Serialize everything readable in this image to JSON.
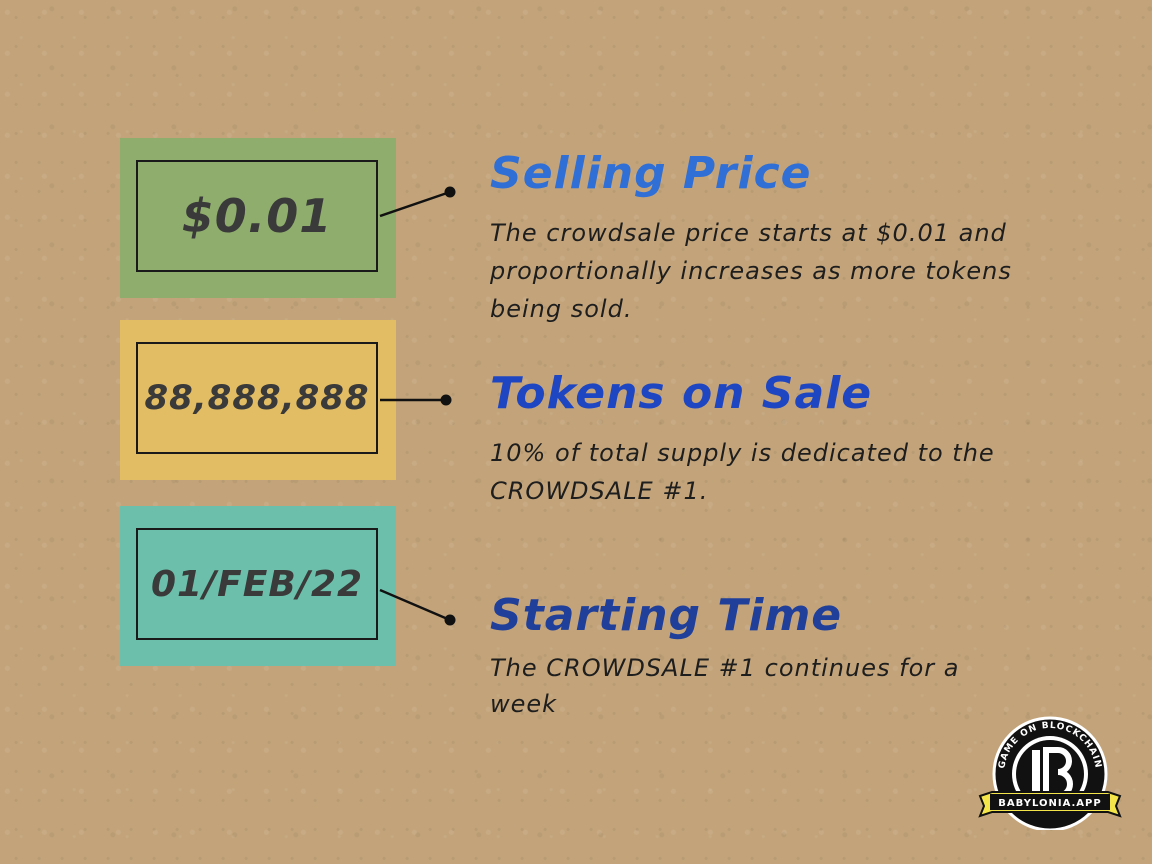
{
  "items": [
    {
      "value": "$0.01",
      "title": "Selling Price",
      "description": "The crowdsale price starts at $0.01 and proportionally increases as more tokens being sold.",
      "color": "#8fad6c"
    },
    {
      "value": "88,888,888",
      "title": "Tokens on Sale",
      "description": "10% of total supply is dedicated to the CROWDSALE #1.",
      "color": "#e3bd63"
    },
    {
      "value": "01/FEB/22",
      "title": "Starting Time",
      "description": "The CROWDSALE #1 continues for a week",
      "color": "#6cc0ab"
    }
  ],
  "logo": {
    "ring_text": "GAME ON BLOCKCHAIN",
    "banner_text": "BABYLONIA.APP"
  }
}
